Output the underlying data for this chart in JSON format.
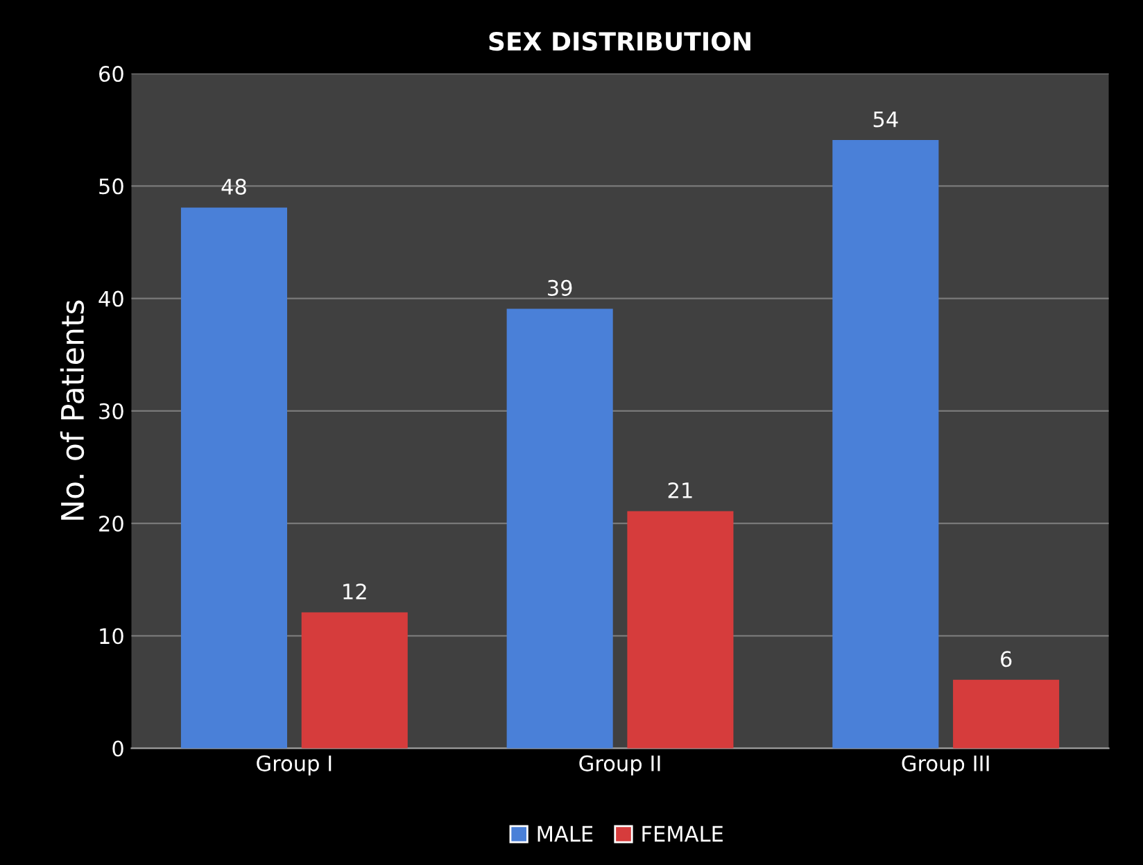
{
  "chart_data": {
    "type": "bar",
    "title": "SEX DISTRIBUTION",
    "ylabel": "No. of Patients",
    "categories": [
      "Group I",
      "Group II",
      "Group III"
    ],
    "series": [
      {
        "name": "MALE",
        "color": "#4a80d8",
        "values": [
          48,
          39,
          54
        ]
      },
      {
        "name": "FEMALE",
        "color": "#d63c3c",
        "values": [
          12,
          21,
          6
        ]
      }
    ],
    "ylim": [
      0,
      60
    ],
    "yticks": [
      0,
      10,
      20,
      30,
      40,
      50,
      60
    ],
    "grid": "y",
    "legend": "bottom",
    "data_labels": true
  }
}
